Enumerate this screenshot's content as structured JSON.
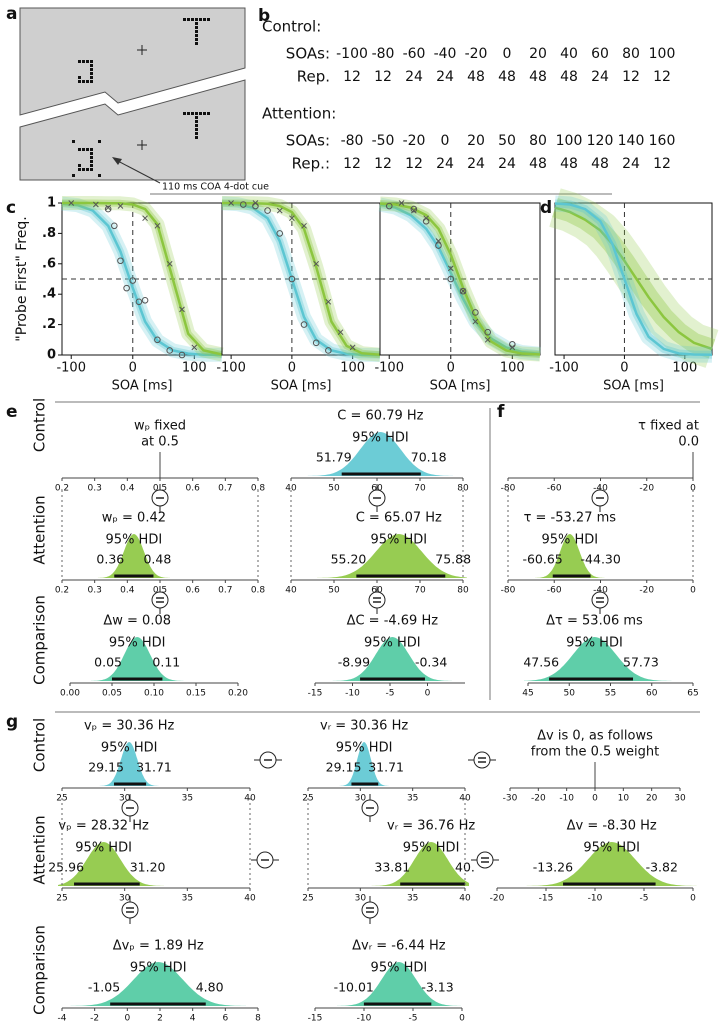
{
  "panel_labels": {
    "a": "a",
    "b": "b",
    "c": "c",
    "d": "d",
    "e": "e",
    "f": "f",
    "g": "g"
  },
  "panel_a": {
    "cue_caption": "110 ms COA  4-dot cue"
  },
  "panel_b": {
    "groups": [
      {
        "title": "Control:",
        "rows": [
          {
            "label": "SOAs:",
            "values": [
              -100,
              -80,
              -60,
              -40,
              -20,
              0,
              20,
              40,
              60,
              80,
              100
            ]
          },
          {
            "label": "Rep.",
            "values": [
              12,
              12,
              24,
              24,
              48,
              48,
              48,
              48,
              24,
              12,
              12
            ]
          }
        ]
      },
      {
        "title": "Attention:",
        "rows": [
          {
            "label": "SOAs:",
            "values": [
              -80,
              -50,
              -20,
              0,
              20,
              50,
              80,
              100,
              120,
              140,
              160
            ]
          },
          {
            "label": "Rep.:",
            "values": [
              12,
              12,
              12,
              24,
              24,
              24,
              48,
              48,
              48,
              24,
              12
            ]
          }
        ]
      }
    ]
  },
  "panel_c": {
    "type": "scatter",
    "ylabel": "\"Probe First\" Freq.",
    "xlabel": "SOA [ms]",
    "xlim": [
      -115,
      145
    ],
    "ylim": [
      0,
      1
    ],
    "xticks": [
      -100,
      0,
      100
    ],
    "yticks": [
      {
        "value": 0,
        "label": "0"
      },
      {
        "value": 0.2,
        "label": ".2"
      },
      {
        "value": 0.4,
        "label": ".4"
      },
      {
        "value": 0.6,
        "label": ".6"
      },
      {
        "value": 0.8,
        "label": ".8"
      },
      {
        "value": 1,
        "label": "1"
      }
    ],
    "plots": [
      {
        "points": [
          {
            "color": "#555555",
            "marker": "circle",
            "x": [
              -40,
              -30,
              -20,
              -10,
              0,
              10,
              20,
              40,
              60,
              80
            ],
            "values": [
              0.96,
              0.85,
              0.62,
              0.44,
              0.49,
              0.35,
              0.36,
              0.1,
              0.03,
              0.0
            ]
          },
          {
            "color": "#555555",
            "marker": "cross",
            "x": [
              -100,
              -60,
              -40,
              -20,
              20,
              40,
              60,
              80,
              100
            ],
            "values": [
              1,
              0.99,
              0.97,
              0.98,
              0.9,
              0.85,
              0.6,
              0.3,
              0.05
            ]
          }
        ],
        "curves": [
          {
            "color": "#5cc6d2",
            "x": [
              -115,
              -90,
              -65,
              -40,
              -20,
              0,
              20,
              40,
              65,
              90,
              115,
              145
            ],
            "values": [
              0.996,
              0.986,
              0.95,
              0.85,
              0.68,
              0.44,
              0.22,
              0.095,
              0.03,
              0.009,
              0.002,
              0.001
            ]
          },
          {
            "color": "#8cc63f",
            "x": [
              -115,
              -90,
              -65,
              -40,
              -20,
              0,
              20,
              40,
              65,
              90,
              115,
              145
            ],
            "values": [
              1,
              1,
              1,
              0.999,
              0.998,
              0.99,
              0.96,
              0.86,
              0.5,
              0.14,
              0.03,
              0.003
            ]
          }
        ]
      },
      {
        "points": [
          {
            "color": "#555555",
            "marker": "circle",
            "x": [
              -80,
              -60,
              -40,
              -20,
              0,
              20,
              40,
              60
            ],
            "values": [
              0.99,
              0.98,
              0.95,
              0.8,
              0.5,
              0.2,
              0.08,
              0.03
            ]
          },
          {
            "color": "#555555",
            "marker": "cross",
            "x": [
              -100,
              -60,
              -20,
              0,
              20,
              40,
              60,
              80,
              100
            ],
            "values": [
              1,
              1,
              0.95,
              0.9,
              0.85,
              0.6,
              0.35,
              0.15,
              0.05
            ]
          }
        ],
        "curves": [
          {
            "color": "#5cc6d2",
            "x": [
              -115,
              -90,
              -65,
              -40,
              -20,
              0,
              20,
              40,
              65,
              90,
              115,
              145
            ],
            "values": [
              0.998,
              0.993,
              0.97,
              0.9,
              0.75,
              0.5,
              0.25,
              0.1,
              0.03,
              0.007,
              0.002,
              0
            ]
          },
          {
            "color": "#8cc63f",
            "x": [
              -115,
              -90,
              -65,
              -40,
              -20,
              0,
              20,
              40,
              65,
              90,
              115,
              145
            ],
            "values": [
              1,
              1,
              0.999,
              0.995,
              0.98,
              0.94,
              0.83,
              0.58,
              0.22,
              0.06,
              0.012,
              0.002
            ]
          }
        ]
      },
      {
        "points": [
          {
            "color": "#555555",
            "marker": "circle",
            "x": [
              -100,
              -60,
              -40,
              -20,
              0,
              20,
              40,
              60,
              100
            ],
            "values": [
              0.98,
              0.96,
              0.88,
              0.72,
              0.5,
              0.42,
              0.28,
              0.15,
              0.07
            ]
          },
          {
            "color": "#555555",
            "marker": "cross",
            "x": [
              -80,
              -60,
              -40,
              -20,
              0,
              20,
              40,
              60,
              100
            ],
            "values": [
              1,
              0.95,
              0.9,
              0.75,
              0.57,
              0.42,
              0.22,
              0.1,
              0.05
            ]
          }
        ],
        "curves": [
          {
            "color": "#5cc6d2",
            "x": [
              -115,
              -90,
              -65,
              -40,
              -20,
              0,
              20,
              40,
              65,
              90,
              115,
              145
            ],
            "values": [
              0.99,
              0.97,
              0.92,
              0.83,
              0.71,
              0.54,
              0.37,
              0.22,
              0.11,
              0.05,
              0.02,
              0.007
            ]
          },
          {
            "color": "#8cc63f",
            "x": [
              -115,
              -90,
              -65,
              -40,
              -20,
              0,
              20,
              40,
              65,
              90,
              115,
              145
            ],
            "values": [
              0.997,
              0.99,
              0.97,
              0.92,
              0.83,
              0.66,
              0.44,
              0.25,
              0.09,
              0.03,
              0.01,
              0.003
            ]
          }
        ]
      }
    ]
  },
  "panel_d": {
    "type": "line",
    "xlabel": "SOA [ms]",
    "xlim": [
      -115,
      145
    ],
    "ylim": [
      0,
      1
    ],
    "xticks": [
      -100,
      0,
      100
    ],
    "curves": [
      {
        "color": "#8cc63f",
        "x": [
          -115,
          -90,
          -65,
          -40,
          -20,
          0,
          20,
          40,
          65,
          90,
          115,
          145
        ],
        "values": [
          0.97,
          0.94,
          0.89,
          0.82,
          0.73,
          0.62,
          0.5,
          0.38,
          0.25,
          0.15,
          0.08,
          0.04
        ]
      },
      {
        "color": "#5cc6d2",
        "x": [
          -115,
          -90,
          -65,
          -40,
          -20,
          0,
          20,
          40,
          65,
          90,
          115,
          145
        ],
        "values": [
          0.997,
          0.99,
          0.96,
          0.88,
          0.73,
          0.5,
          0.27,
          0.12,
          0.04,
          0.01,
          0.003,
          0.001
        ]
      }
    ]
  },
  "panel_e": {
    "row_labels": [
      "Control",
      "Attention",
      "Comparison"
    ],
    "columns": [
      [
        {
          "text": [
            "wₚ fixed",
            "at 0.5"
          ],
          "fixed": 0.5,
          "color": "#5cc6d2",
          "xlim": [
            0.2,
            0.8
          ],
          "xticks": [
            0.2,
            0.3,
            0.4,
            0.5,
            0.6,
            0.7,
            0.8
          ]
        },
        {
          "text": [
            "wₚ = 0.42"
          ],
          "mean": 0.42,
          "hdi_label": "95% HDI",
          "hdi": [
            0.36,
            0.48
          ],
          "color": "#8cc63f",
          "xlim": [
            0.2,
            0.8
          ],
          "xticks": [
            0.2,
            0.3,
            0.4,
            0.5,
            0.6,
            0.7,
            0.8
          ]
        },
        {
          "text": [
            "Δw = 0.08"
          ],
          "mean": 0.08,
          "hdi_label": "95% HDI",
          "hdi": [
            0.05,
            0.11
          ],
          "color": "#4ec9a0",
          "xlim": [
            0,
            0.2
          ],
          "xticks": [
            {
              "value": 0,
              "label": "0.00"
            },
            0.05,
            {
              "value": 0.1,
              "label": "0.10"
            },
            0.15,
            {
              "value": 0.2,
              "label": "0.20"
            }
          ]
        }
      ],
      [
        {
          "text": [
            "C = 60.79 Hz"
          ],
          "mean": 60.79,
          "hdi_label": "95% HDI",
          "hdi": [
            51.79,
            70.18
          ],
          "color": "#5cc6d2",
          "xlim": [
            40,
            80
          ],
          "xticks": [
            40,
            50,
            60,
            70,
            80
          ]
        },
        {
          "text": [
            "C = 65.07 Hz"
          ],
          "mean": 65.07,
          "hdi_label": "95% HDI",
          "hdi": [
            {
              "value": 55.2,
              "label": "55.20"
            },
            75.88
          ],
          "color": "#8cc63f",
          "xlim": [
            40,
            80
          ],
          "xticks": [
            40,
            50,
            60,
            70,
            80
          ]
        },
        {
          "text": [
            "ΔC = -4.69 Hz"
          ],
          "mean": -4.69,
          "hdi_label": "95% HDI",
          "hdi": [
            -8.99,
            -0.34
          ],
          "color": "#4ec9a0",
          "xlim": [
            -15,
            5
          ],
          "xticks": [
            -15,
            -10,
            -5,
            0
          ]
        }
      ]
    ]
  },
  "panel_f": {
    "cells": [
      {
        "text": [
          "τ fixed at",
          "0.0"
        ],
        "fixed": 0,
        "color": "#5cc6d2",
        "xlim": [
          -80,
          0
        ],
        "xticks": [
          -80,
          -60,
          -40,
          -20,
          0
        ]
      },
      {
        "text": [
          "τ = -53.27 ms"
        ],
        "mean": -53.27,
        "hdi_label": "95% HDI",
        "hdi": [
          -60.65,
          {
            "value": -44.3,
            "label": "-44.30"
          }
        ],
        "color": "#8cc63f",
        "xlim": [
          -80,
          0
        ],
        "xticks": [
          -80,
          -60,
          -40,
          -20,
          0
        ]
      },
      {
        "text": [
          "Δτ = 53.06 ms"
        ],
        "mean": 53.06,
        "hdi_label": "95% HDI",
        "hdi": [
          47.56,
          57.73
        ],
        "color": "#4ec9a0",
        "xlim": [
          45,
          65
        ],
        "xticks": [
          45,
          50,
          55,
          60,
          65
        ]
      }
    ]
  },
  "panel_g": {
    "row_labels": [
      "Control",
      "Attention",
      "Comparison"
    ],
    "columns": [
      [
        {
          "text": [
            "vₚ = 30.36 Hz"
          ],
          "mean": 30.36,
          "hdi_label": "95% HDI",
          "hdi": [
            29.15,
            31.71
          ],
          "color": "#5cc6d2",
          "xlim": [
            25,
            40
          ],
          "xticks": [
            25,
            30,
            35,
            40
          ]
        },
        {
          "text": [
            "vₚ = 28.32 Hz"
          ],
          "mean": 28.32,
          "hdi_label": "95% HDI",
          "hdi": [
            25.96,
            {
              "value": 31.2,
              "label": "31.20"
            }
          ],
          "color": "#8cc63f",
          "xlim": [
            25,
            40
          ],
          "xticks": [
            25,
            30,
            35,
            40
          ]
        },
        {
          "text": [
            "Δvₚ = 1.89 Hz"
          ],
          "mean": 1.89,
          "hdi_label": "95% HDI",
          "hdi": [
            -1.05,
            {
              "value": 4.8,
              "label": "4.80"
            }
          ],
          "color": "#4ec9a0",
          "xlim": [
            -4,
            8
          ],
          "xticks": [
            -4,
            -2,
            0,
            2,
            4,
            6,
            8
          ]
        }
      ],
      [
        {
          "text": [
            "vᵣ = 30.36 Hz"
          ],
          "mean": 30.36,
          "hdi_label": "95% HDI",
          "hdi": [
            29.15,
            31.71
          ],
          "color": "#5cc6d2",
          "xlim": [
            25,
            40
          ],
          "xticks": [
            25,
            30,
            35,
            40
          ]
        },
        {
          "text": [
            "vᵣ = 36.76 Hz"
          ],
          "mean": 36.76,
          "hdi_label": "95% HDI",
          "hdi": [
            33.81,
            {
              "value": 40,
              "label": "40."
            }
          ],
          "color": "#8cc63f",
          "xlim": [
            25,
            40
          ],
          "xticks": [
            25,
            30,
            35,
            40
          ]
        },
        {
          "text": [
            "Δvᵣ = -6.44 Hz"
          ],
          "mean": -6.44,
          "hdi_label": "95% HDI",
          "hdi": [
            -10.01,
            -3.13
          ],
          "color": "#4ec9a0",
          "xlim": [
            -15,
            0
          ],
          "xticks": [
            -15,
            -10,
            -5,
            0
          ]
        }
      ],
      [
        {
          "text": [
            "Δv is 0, as follows",
            "from the 0.5 weight"
          ],
          "fixed": 0,
          "color": "#5cc6d2",
          "xlim": [
            -30,
            30
          ],
          "xticks": [
            -30,
            -20,
            -10,
            0,
            10,
            20,
            30
          ]
        },
        {
          "text": [
            "Δv = -8.30 Hz"
          ],
          "mean": -8.3,
          "hdi_label": "95% HDI",
          "hdi": [
            -13.26,
            -3.82
          ],
          "color": "#8cc63f",
          "xlim": [
            -20,
            0
          ],
          "xticks": [
            -20,
            -15,
            -10,
            -5,
            0
          ]
        }
      ]
    ]
  }
}
